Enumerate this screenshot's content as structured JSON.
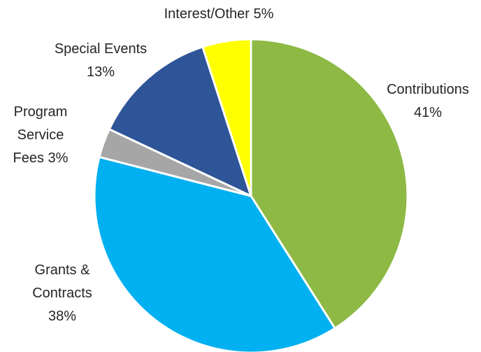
{
  "chart_data": {
    "type": "pie",
    "title": "",
    "slices": [
      {
        "label_lines": [
          "Contributions",
          "41%"
        ],
        "value": 41,
        "color": "#8DB944"
      },
      {
        "label_lines": [
          "Grants &",
          "Contracts",
          "38%"
        ],
        "value": 38,
        "color": "#00B0F0"
      },
      {
        "label_lines": [
          "Program",
          "Service",
          "Fees 3%"
        ],
        "value": 3,
        "color": "#A6A6A6"
      },
      {
        "label_lines": [
          "Special Events",
          "13%"
        ],
        "value": 13,
        "color": "#2E5597"
      },
      {
        "label_lines": [
          "Interest/Other 5%"
        ],
        "value": 5,
        "color": "#FFFF00"
      }
    ],
    "start": "12 o'clock",
    "direction": "clockwise",
    "legend": "none"
  }
}
